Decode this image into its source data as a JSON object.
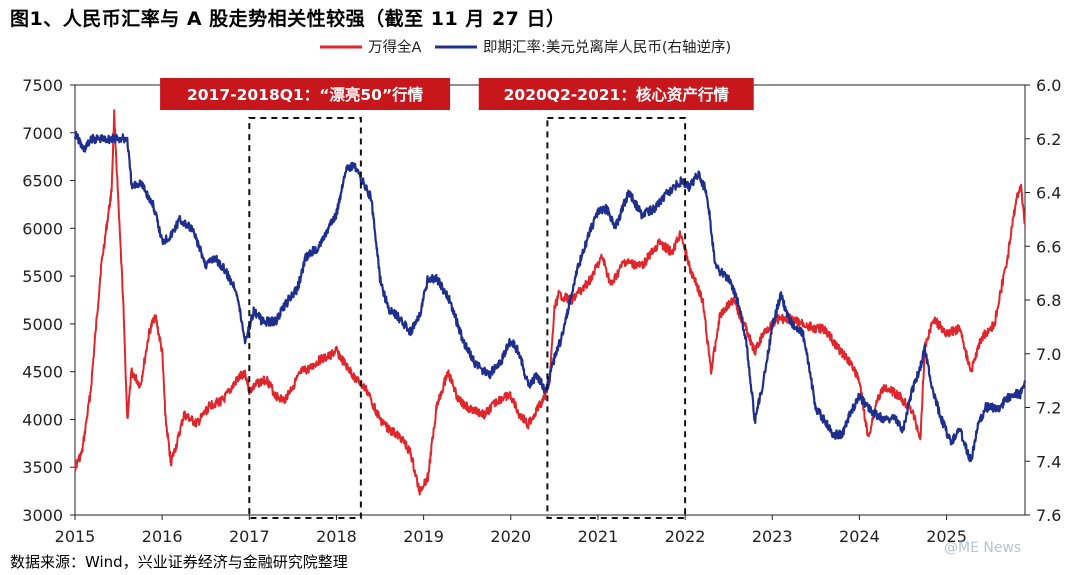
{
  "title": "图1、人民币汇率与 A 股走势相关性较强（截至 11 月 27 日）",
  "source": "数据来源：Wind，兴业证券经济与金融研究院整理",
  "watermark": "@ME News",
  "colors": {
    "series1": "#e0262b",
    "series2": "#1f2f8e",
    "annotation_bg": "#c8161d",
    "annotation_text": "#ffffff"
  },
  "chart_data": {
    "type": "line",
    "x_unit": "year",
    "xlim": [
      2015.0,
      2025.9
    ],
    "x_ticks": [
      2015,
      2016,
      2017,
      2018,
      2019,
      2020,
      2021,
      2022,
      2023,
      2024,
      2025
    ],
    "left_axis": {
      "ylim": [
        3000,
        7500
      ],
      "ticks": [
        3000,
        3500,
        4000,
        4500,
        5000,
        5500,
        6000,
        6500,
        7000,
        7500
      ]
    },
    "right_axis": {
      "ylim": [
        6.0,
        7.6
      ],
      "inverted": true,
      "ticks": [
        "6.0",
        "6.2",
        "6.4",
        "6.6",
        "6.8",
        "7.0",
        "7.2",
        "7.4",
        "7.6"
      ]
    },
    "series": [
      {
        "name": "万得全A",
        "axis": "left",
        "points": [
          [
            2015.0,
            3500
          ],
          [
            2015.08,
            3650
          ],
          [
            2015.18,
            4300
          ],
          [
            2015.3,
            5600
          ],
          [
            2015.42,
            6400
          ],
          [
            2015.45,
            7200
          ],
          [
            2015.5,
            6200
          ],
          [
            2015.55,
            5300
          ],
          [
            2015.6,
            4000
          ],
          [
            2015.65,
            4500
          ],
          [
            2015.75,
            4350
          ],
          [
            2015.85,
            4900
          ],
          [
            2015.92,
            5100
          ],
          [
            2016.0,
            4700
          ],
          [
            2016.04,
            4000
          ],
          [
            2016.1,
            3550
          ],
          [
            2016.17,
            3750
          ],
          [
            2016.25,
            4050
          ],
          [
            2016.4,
            3950
          ],
          [
            2016.55,
            4150
          ],
          [
            2016.7,
            4200
          ],
          [
            2016.85,
            4400
          ],
          [
            2016.95,
            4500
          ],
          [
            2017.0,
            4300
          ],
          [
            2017.1,
            4380
          ],
          [
            2017.2,
            4420
          ],
          [
            2017.3,
            4250
          ],
          [
            2017.4,
            4200
          ],
          [
            2017.5,
            4350
          ],
          [
            2017.6,
            4500
          ],
          [
            2017.7,
            4530
          ],
          [
            2017.8,
            4620
          ],
          [
            2017.9,
            4650
          ],
          [
            2018.0,
            4720
          ],
          [
            2018.08,
            4600
          ],
          [
            2018.2,
            4450
          ],
          [
            2018.35,
            4300
          ],
          [
            2018.5,
            4000
          ],
          [
            2018.6,
            3900
          ],
          [
            2018.75,
            3800
          ],
          [
            2018.85,
            3650
          ],
          [
            2018.95,
            3250
          ],
          [
            2019.05,
            3400
          ],
          [
            2019.15,
            4150
          ],
          [
            2019.28,
            4500
          ],
          [
            2019.4,
            4200
          ],
          [
            2019.55,
            4100
          ],
          [
            2019.7,
            4050
          ],
          [
            2019.85,
            4200
          ],
          [
            2020.0,
            4250
          ],
          [
            2020.1,
            4050
          ],
          [
            2020.2,
            3950
          ],
          [
            2020.3,
            4100
          ],
          [
            2020.4,
            4250
          ],
          [
            2020.45,
            4450
          ],
          [
            2020.5,
            5150
          ],
          [
            2020.55,
            5300
          ],
          [
            2020.7,
            5250
          ],
          [
            2020.9,
            5450
          ],
          [
            2021.05,
            5700
          ],
          [
            2021.15,
            5400
          ],
          [
            2021.3,
            5650
          ],
          [
            2021.5,
            5600
          ],
          [
            2021.7,
            5850
          ],
          [
            2021.85,
            5750
          ],
          [
            2021.95,
            5950
          ],
          [
            2022.05,
            5600
          ],
          [
            2022.2,
            5250
          ],
          [
            2022.3,
            4500
          ],
          [
            2022.4,
            5100
          ],
          [
            2022.55,
            5250
          ],
          [
            2022.7,
            4950
          ],
          [
            2022.8,
            4700
          ],
          [
            2022.9,
            4900
          ],
          [
            2023.05,
            5050
          ],
          [
            2023.2,
            5050
          ],
          [
            2023.35,
            5000
          ],
          [
            2023.5,
            4950
          ],
          [
            2023.6,
            4950
          ],
          [
            2023.75,
            4750
          ],
          [
            2023.9,
            4600
          ],
          [
            2024.0,
            4400
          ],
          [
            2024.1,
            3800
          ],
          [
            2024.2,
            4200
          ],
          [
            2024.3,
            4350
          ],
          [
            2024.45,
            4250
          ],
          [
            2024.6,
            4100
          ],
          [
            2024.7,
            3800
          ],
          [
            2024.75,
            4750
          ],
          [
            2024.85,
            5050
          ],
          [
            2025.0,
            4900
          ],
          [
            2025.15,
            4950
          ],
          [
            2025.28,
            4500
          ],
          [
            2025.4,
            4850
          ],
          [
            2025.55,
            5000
          ],
          [
            2025.7,
            5700
          ],
          [
            2025.8,
            6300
          ],
          [
            2025.85,
            6450
          ],
          [
            2025.9,
            6050
          ]
        ]
      },
      {
        "name": "即期汇率:美元兑离岸人民币(右轴逆序)",
        "axis": "right",
        "points": [
          [
            2015.0,
            6.18
          ],
          [
            2015.1,
            6.24
          ],
          [
            2015.2,
            6.2
          ],
          [
            2015.4,
            6.2
          ],
          [
            2015.6,
            6.2
          ],
          [
            2015.65,
            6.38
          ],
          [
            2015.75,
            6.36
          ],
          [
            2015.9,
            6.45
          ],
          [
            2016.0,
            6.58
          ],
          [
            2016.1,
            6.56
          ],
          [
            2016.2,
            6.5
          ],
          [
            2016.35,
            6.54
          ],
          [
            2016.5,
            6.67
          ],
          [
            2016.6,
            6.64
          ],
          [
            2016.7,
            6.68
          ],
          [
            2016.85,
            6.76
          ],
          [
            2016.95,
            6.95
          ],
          [
            2017.0,
            6.9
          ],
          [
            2017.05,
            6.84
          ],
          [
            2017.15,
            6.88
          ],
          [
            2017.3,
            6.88
          ],
          [
            2017.45,
            6.8
          ],
          [
            2017.55,
            6.76
          ],
          [
            2017.65,
            6.64
          ],
          [
            2017.8,
            6.6
          ],
          [
            2017.9,
            6.54
          ],
          [
            2018.0,
            6.48
          ],
          [
            2018.1,
            6.32
          ],
          [
            2018.2,
            6.3
          ],
          [
            2018.3,
            6.36
          ],
          [
            2018.4,
            6.42
          ],
          [
            2018.5,
            6.72
          ],
          [
            2018.6,
            6.84
          ],
          [
            2018.7,
            6.86
          ],
          [
            2018.85,
            6.92
          ],
          [
            2018.95,
            6.86
          ],
          [
            2019.05,
            6.72
          ],
          [
            2019.15,
            6.72
          ],
          [
            2019.3,
            6.8
          ],
          [
            2019.45,
            6.95
          ],
          [
            2019.6,
            7.04
          ],
          [
            2019.75,
            7.08
          ],
          [
            2019.9,
            7.02
          ],
          [
            2020.0,
            6.95
          ],
          [
            2020.1,
            7.0
          ],
          [
            2020.2,
            7.12
          ],
          [
            2020.3,
            7.08
          ],
          [
            2020.4,
            7.14
          ],
          [
            2020.5,
            7.02
          ],
          [
            2020.6,
            6.92
          ],
          [
            2020.75,
            6.7
          ],
          [
            2020.9,
            6.55
          ],
          [
            2021.0,
            6.47
          ],
          [
            2021.1,
            6.46
          ],
          [
            2021.2,
            6.53
          ],
          [
            2021.35,
            6.4
          ],
          [
            2021.5,
            6.48
          ],
          [
            2021.65,
            6.46
          ],
          [
            2021.8,
            6.4
          ],
          [
            2021.95,
            6.36
          ],
          [
            2022.05,
            6.38
          ],
          [
            2022.15,
            6.33
          ],
          [
            2022.25,
            6.4
          ],
          [
            2022.35,
            6.68
          ],
          [
            2022.5,
            6.72
          ],
          [
            2022.6,
            6.8
          ],
          [
            2022.7,
            6.95
          ],
          [
            2022.8,
            7.25
          ],
          [
            2022.9,
            7.1
          ],
          [
            2023.0,
            6.9
          ],
          [
            2023.1,
            6.78
          ],
          [
            2023.2,
            6.88
          ],
          [
            2023.35,
            6.92
          ],
          [
            2023.5,
            7.2
          ],
          [
            2023.6,
            7.25
          ],
          [
            2023.7,
            7.3
          ],
          [
            2023.8,
            7.3
          ],
          [
            2023.9,
            7.22
          ],
          [
            2024.0,
            7.16
          ],
          [
            2024.1,
            7.2
          ],
          [
            2024.25,
            7.24
          ],
          [
            2024.4,
            7.24
          ],
          [
            2024.5,
            7.28
          ],
          [
            2024.6,
            7.14
          ],
          [
            2024.7,
            7.05
          ],
          [
            2024.75,
            6.98
          ],
          [
            2024.85,
            7.15
          ],
          [
            2024.95,
            7.25
          ],
          [
            2025.05,
            7.33
          ],
          [
            2025.15,
            7.28
          ],
          [
            2025.28,
            7.4
          ],
          [
            2025.35,
            7.28
          ],
          [
            2025.45,
            7.2
          ],
          [
            2025.6,
            7.2
          ],
          [
            2025.75,
            7.15
          ],
          [
            2025.85,
            7.15
          ],
          [
            2025.9,
            7.1
          ]
        ]
      }
    ],
    "annotations": [
      {
        "label": "2017-2018Q1：“漂亮50”行情",
        "x_start": 2017.0,
        "x_end": 2018.28
      },
      {
        "label": "2020Q2-2021：核心资产行情",
        "x_start": 2020.42,
        "x_end": 2022.0
      }
    ]
  }
}
